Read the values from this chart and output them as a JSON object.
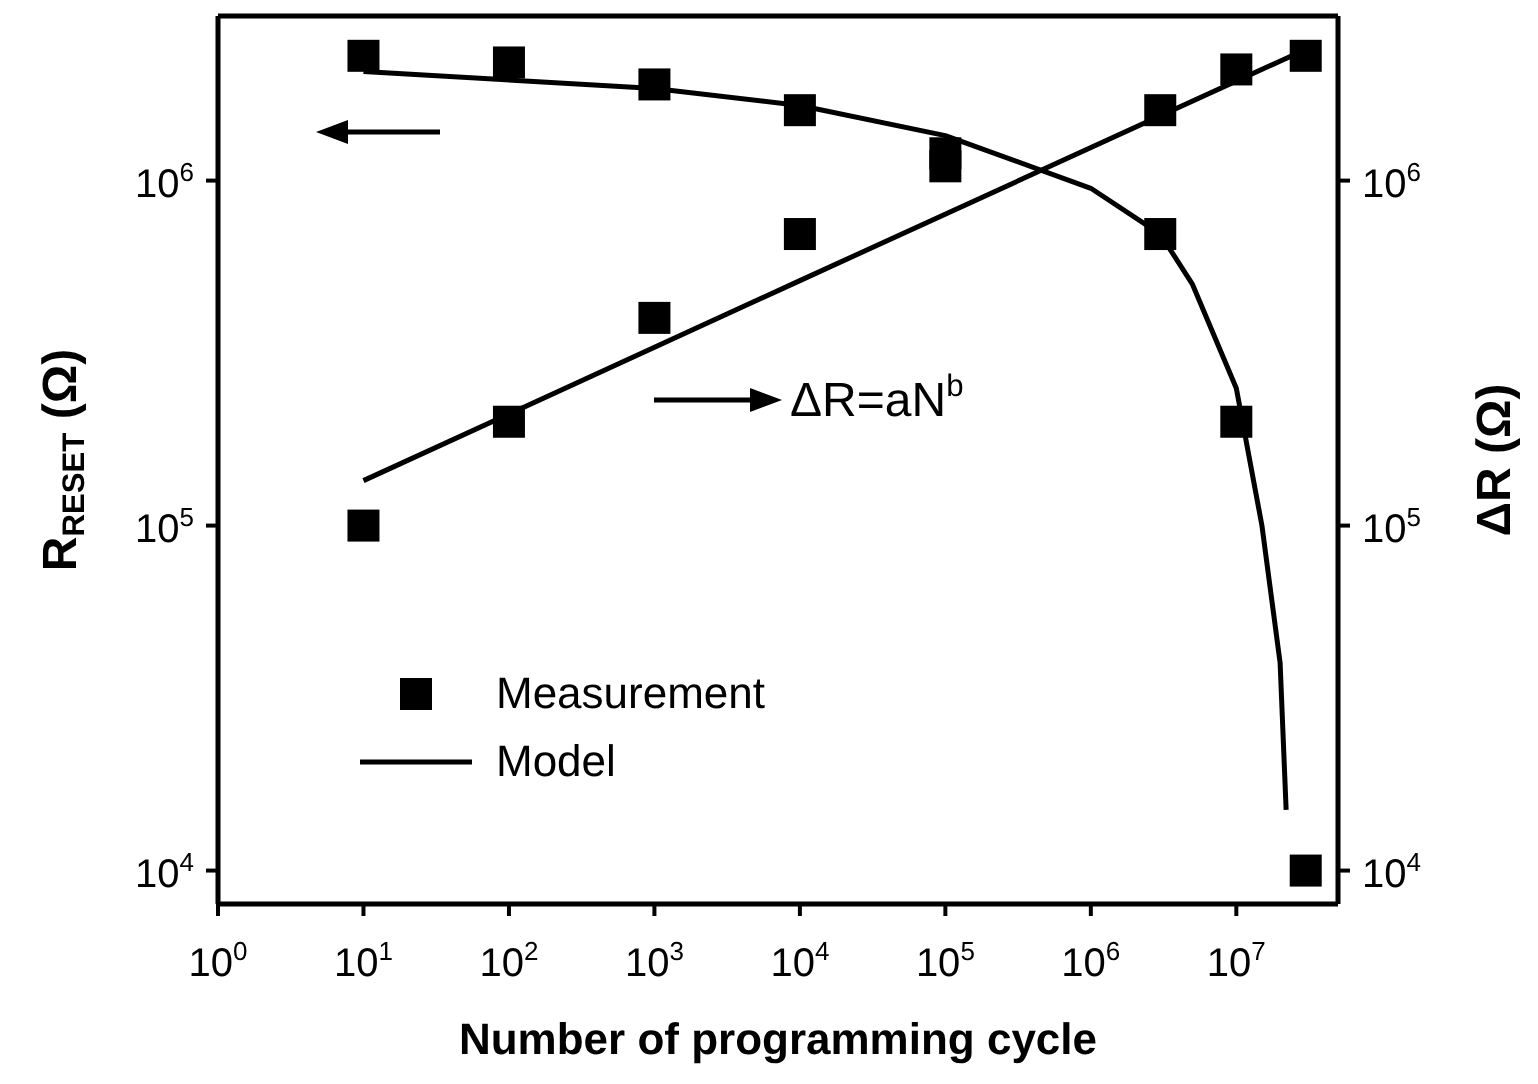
{
  "chart_data": {
    "type": "scatter",
    "xlabel": "Number of programming cycle",
    "ylabel": "R$_{RESET}$ (Ω)",
    "y2label": "ΔR (Ω)",
    "log": "xy",
    "xlim": [
      1,
      50000000
    ],
    "ylim": [
      8000,
      3000000
    ],
    "xticks": [
      {
        "value": 1,
        "label": "10$^{0}$"
      },
      {
        "value": 10,
        "label": "10$^{1}$"
      },
      {
        "value": 100,
        "label": "10$^{2}$"
      },
      {
        "value": 1000,
        "label": "10$^{3}$"
      },
      {
        "value": 10000,
        "label": "10$^{4}$"
      },
      {
        "value": 100000,
        "label": "10$^{5}$"
      },
      {
        "value": 1000000,
        "label": "10$^{6}$"
      },
      {
        "value": 10000000,
        "label": "10$^{7}$"
      }
    ],
    "yticks": [
      {
        "value": 10000,
        "label": "10$^{4}$"
      },
      {
        "value": 100000,
        "label": "10$^{5}$"
      },
      {
        "value": 1000000,
        "label": "10$^{6}$"
      }
    ],
    "marker": "square",
    "grid": false,
    "legend": "bottom left",
    "series": [
      {
        "name": "Measurement",
        "color": "#000000",
        "x": [
          10,
          100,
          1000,
          10000,
          100000,
          3000000,
          10000000,
          30000000
        ],
        "values": [
          2300000,
          2200000,
          1900000,
          1600000,
          1200000,
          700000,
          200000,
          10000
        ]
      },
      {
        "color": "#000000",
        "x": [
          10,
          100,
          1000,
          10000,
          100000,
          3000000,
          10000000,
          30000000
        ],
        "values": [
          100000,
          200000,
          400000,
          700000,
          1100000,
          1600000,
          2100000,
          2300000
        ]
      },
      {
        "name": "Model",
        "type": "line",
        "color": "#000000",
        "marker": "none",
        "x": [
          10,
          1000,
          10000,
          100000,
          1000000,
          3000000,
          5000000,
          10000000,
          15000000,
          20000000,
          22000000
        ],
        "values": [
          2070000,
          1850000,
          1650000,
          1350000,
          950000,
          700000,
          500000,
          250000,
          100000,
          40000,
          15000
        ]
      },
      {
        "type": "line",
        "color": "#000000",
        "marker": "none",
        "x": [
          10,
          10000,
          30000000
        ],
        "values": [
          135000,
          513000,
          2400000
        ]
      }
    ],
    "annotations": [
      "ΔR=aN$^{b}$"
    ]
  }
}
